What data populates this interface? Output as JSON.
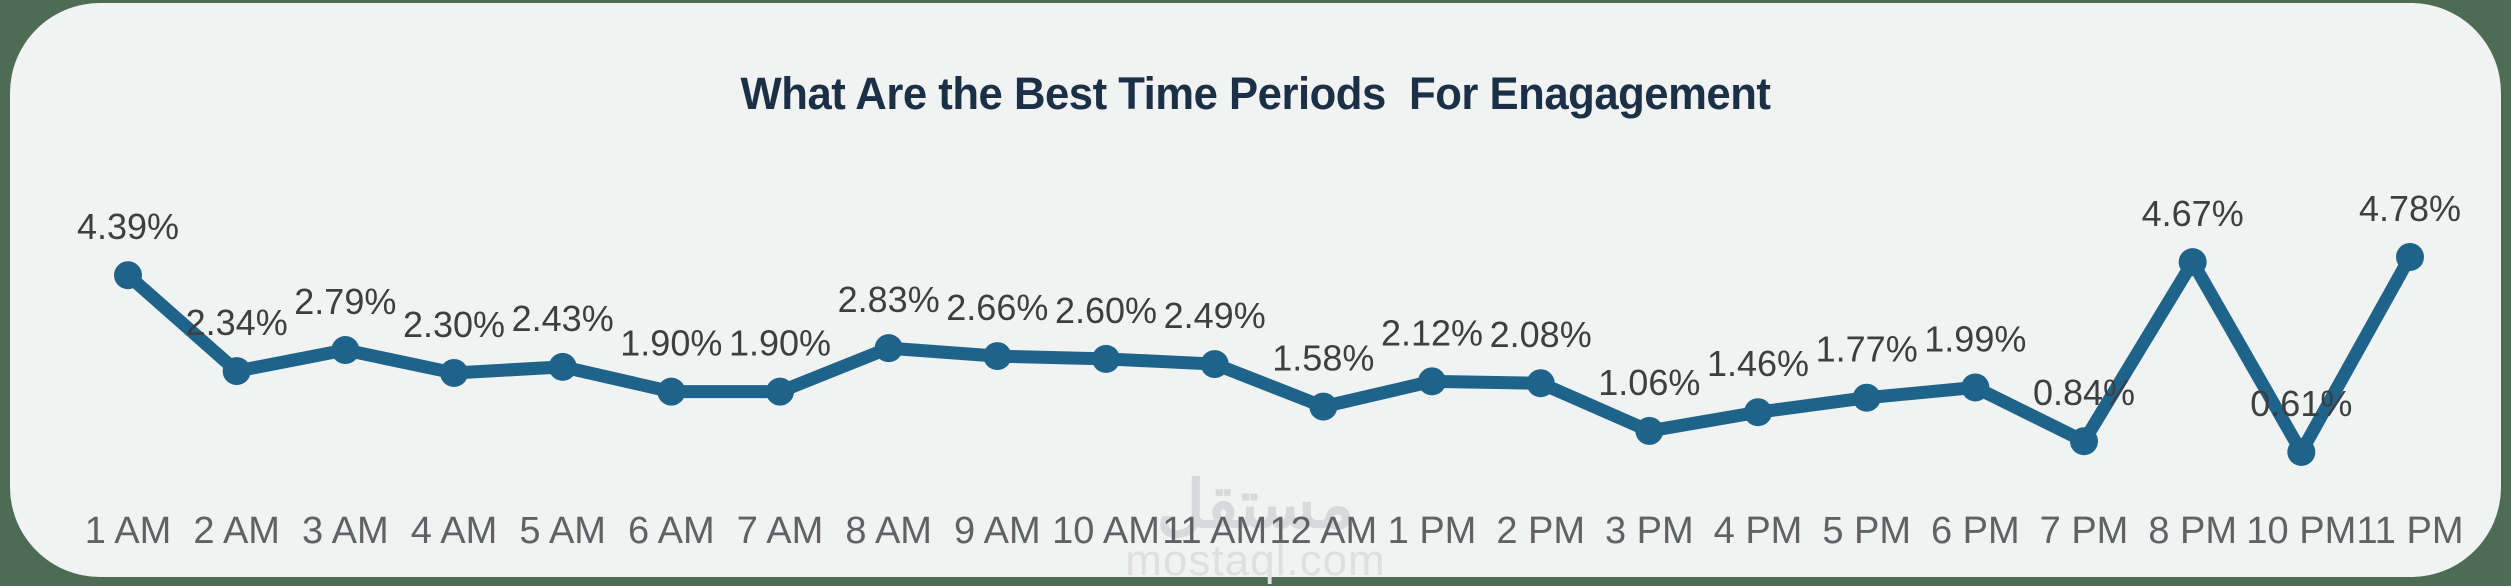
{
  "page": {
    "background_color": "#4e6b54",
    "card_color": "#f1f2f2"
  },
  "title": "What Are the Best Time Periods  For Enagagement",
  "title_color": "#1b3047",
  "watermark": {
    "logo_text": "مستقل",
    "domain_text": "mostaql.com",
    "color": "#d8d9da"
  },
  "chart_data": {
    "type": "line",
    "title": "What Are the Best Time Periods  For Enagagement",
    "categories": [
      "1 AM",
      "2 AM",
      "3 AM",
      "4 AM",
      "5 AM",
      "6 AM",
      "7 AM",
      "8 AM",
      "9 AM",
      "10 AM",
      "11 AM",
      "12 AM",
      "1 PM",
      "2 PM",
      "3 PM",
      "4 PM",
      "5 PM",
      "6 PM",
      "7 PM",
      "8 PM",
      "10 PM",
      "11 PM"
    ],
    "values": [
      4.39,
      2.34,
      2.79,
      2.3,
      2.43,
      1.9,
      1.9,
      2.83,
      2.66,
      2.6,
      2.49,
      1.58,
      2.12,
      2.08,
      1.06,
      1.46,
      1.77,
      1.99,
      0.84,
      4.67,
      0.61,
      4.78
    ],
    "point_labels": [
      "4.39%",
      "2.34%",
      "2.79%",
      "2.30%",
      "2.43%",
      "1.90%",
      "1.90%",
      "2.83%",
      "2.66%",
      "2.60%",
      "2.49%",
      "1.58%",
      "2.12%",
      "2.08%",
      "1.06%",
      "1.46%",
      "1.77%",
      "1.99%",
      "0.84%",
      "4.67%",
      "0.61%",
      "4.78%"
    ],
    "xlabel": "",
    "ylabel": "",
    "ylim": [
      0,
      5.5
    ],
    "grid": false,
    "legend": false,
    "line_color": "#1e6389",
    "marker_color": "#1e6389",
    "point_label_color": "#3d3e40",
    "axis_label_color": "#606164"
  }
}
